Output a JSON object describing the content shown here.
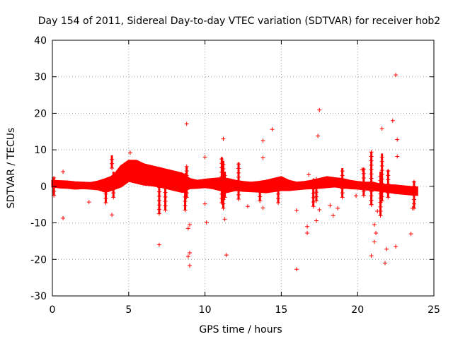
{
  "chart_data": {
    "type": "scatter",
    "title": "Day 154 of 2011, Sidereal Day-to-day VTEC variation (SDTVAR) for receiver hob2",
    "xlabel": "GPS time / hours",
    "ylabel": "SDTVAR / TECUs",
    "xlim": [
      0,
      25
    ],
    "ylim": [
      -30,
      40
    ],
    "xticks": [
      0,
      5,
      10,
      15,
      20,
      25
    ],
    "yticks": [
      -30,
      -20,
      -10,
      0,
      10,
      20,
      30,
      40
    ],
    "xtick_labels": [
      "0",
      "5",
      "10",
      "15",
      "20",
      "25"
    ],
    "ytick_labels": [
      "-30",
      "-20",
      "-10",
      "0",
      "10",
      "20",
      "30",
      "40"
    ],
    "grid": true,
    "marker": "+",
    "color": "#ff0000",
    "band": [
      [
        0.0,
        0.0,
        1.5
      ],
      [
        0.5,
        -0.3,
        1.4
      ],
      [
        1.0,
        -0.4,
        1.3
      ],
      [
        1.5,
        -0.6,
        1.1
      ],
      [
        2.0,
        -0.5,
        1.0
      ],
      [
        2.5,
        -0.6,
        0.9
      ],
      [
        3.0,
        -0.8,
        1.3
      ],
      [
        3.5,
        -1.5,
        2.0
      ],
      [
        4.0,
        -0.8,
        2.8
      ],
      [
        4.5,
        0.0,
        5.5
      ],
      [
        5.0,
        1.5,
        7.0
      ],
      [
        5.5,
        1.0,
        7.0
      ],
      [
        6.0,
        0.5,
        6.0
      ],
      [
        6.5,
        0.3,
        5.5
      ],
      [
        7.0,
        0.0,
        5.0
      ],
      [
        7.5,
        -0.5,
        4.5
      ],
      [
        8.0,
        -1.0,
        4.0
      ],
      [
        8.5,
        -1.5,
        3.5
      ],
      [
        9.0,
        -0.5,
        2.0
      ],
      [
        9.5,
        -0.4,
        1.5
      ],
      [
        10.0,
        -0.2,
        1.8
      ],
      [
        10.5,
        -0.5,
        2.0
      ],
      [
        11.0,
        -1.0,
        2.2
      ],
      [
        11.5,
        -1.5,
        2.0
      ],
      [
        12.0,
        -1.0,
        1.5
      ],
      [
        12.5,
        -1.2,
        1.2
      ],
      [
        13.0,
        -1.3,
        1.0
      ],
      [
        13.5,
        -1.4,
        1.2
      ],
      [
        14.0,
        -1.6,
        1.5
      ],
      [
        14.5,
        -1.3,
        2.0
      ],
      [
        15.0,
        -1.0,
        2.5
      ],
      [
        15.5,
        -1.0,
        1.5
      ],
      [
        16.0,
        -0.8,
        1.0
      ],
      [
        16.5,
        -0.6,
        1.2
      ],
      [
        17.0,
        -0.5,
        1.5
      ],
      [
        17.5,
        -0.4,
        2.0
      ],
      [
        18.0,
        -0.2,
        2.5
      ],
      [
        18.5,
        0.0,
        2.2
      ],
      [
        19.0,
        -0.3,
        2.0
      ],
      [
        19.5,
        -0.5,
        1.5
      ],
      [
        20.0,
        -0.6,
        1.2
      ],
      [
        20.5,
        -0.8,
        1.0
      ],
      [
        21.0,
        -1.0,
        1.0
      ],
      [
        21.5,
        -1.2,
        0.5
      ],
      [
        22.0,
        -1.5,
        0.3
      ],
      [
        22.5,
        -1.8,
        0.2
      ],
      [
        23.0,
        -2.0,
        0.0
      ],
      [
        23.5,
        -2.2,
        -0.2
      ],
      [
        23.9,
        -2.3,
        -0.3
      ]
    ],
    "spikes": [
      [
        0.1,
        -2.5,
        2.5
      ],
      [
        3.5,
        -4.5,
        2.0
      ],
      [
        3.9,
        5.0,
        8.5
      ],
      [
        4.0,
        -3.0,
        4.0
      ],
      [
        7.0,
        -7.5,
        4.5
      ],
      [
        7.4,
        -6.5,
        4.0
      ],
      [
        8.7,
        -6.5,
        3.5
      ],
      [
        8.8,
        -3.0,
        5.5
      ],
      [
        11.1,
        -4.5,
        8.0
      ],
      [
        11.2,
        -6.0,
        7.0
      ],
      [
        11.3,
        -3.0,
        4.0
      ],
      [
        12.2,
        -3.5,
        6.5
      ],
      [
        13.6,
        -4.0,
        1.5
      ],
      [
        14.8,
        -4.5,
        2.5
      ],
      [
        17.1,
        -5.5,
        2.0
      ],
      [
        17.3,
        -4.0,
        2.0
      ],
      [
        19.0,
        -3.0,
        5.0
      ],
      [
        20.4,
        -2.5,
        5.0
      ],
      [
        20.9,
        -5.0,
        9.5
      ],
      [
        21.5,
        -8.0,
        4.0
      ],
      [
        21.6,
        -4.0,
        9.0
      ],
      [
        22.0,
        -3.0,
        4.5
      ],
      [
        23.7,
        -6.0,
        1.5
      ]
    ],
    "outliers": [
      [
        0.7,
        4.0
      ],
      [
        0.7,
        -8.7
      ],
      [
        2.4,
        -4.3
      ],
      [
        3.9,
        -7.8
      ],
      [
        5.1,
        9.2
      ],
      [
        7.0,
        -16.0
      ],
      [
        8.8,
        17.1
      ],
      [
        8.9,
        -11.5
      ],
      [
        8.9,
        -19.2
      ],
      [
        9.0,
        -10.5
      ],
      [
        9.0,
        -18.2
      ],
      [
        9.0,
        -21.7
      ],
      [
        10.0,
        8.0
      ],
      [
        10.0,
        -4.8
      ],
      [
        10.1,
        -9.9
      ],
      [
        11.2,
        13.0
      ],
      [
        11.3,
        -9.0
      ],
      [
        11.4,
        -18.8
      ],
      [
        12.8,
        -5.5
      ],
      [
        13.8,
        12.5
      ],
      [
        13.8,
        7.8
      ],
      [
        13.8,
        -5.9
      ],
      [
        14.4,
        15.6
      ],
      [
        16.0,
        -6.6
      ],
      [
        16.0,
        -22.7
      ],
      [
        16.7,
        -11.0
      ],
      [
        16.7,
        -12.8
      ],
      [
        16.8,
        3.2
      ],
      [
        17.3,
        -9.4
      ],
      [
        17.4,
        13.8
      ],
      [
        17.5,
        20.9
      ],
      [
        17.5,
        -6.4
      ],
      [
        18.2,
        -5.2
      ],
      [
        18.4,
        -8.0
      ],
      [
        18.7,
        -6.0
      ],
      [
        19.9,
        -2.6
      ],
      [
        20.3,
        4.6
      ],
      [
        20.9,
        -5.0
      ],
      [
        20.9,
        -19.0
      ],
      [
        21.1,
        -10.5
      ],
      [
        21.1,
        -15.2
      ],
      [
        21.2,
        -12.8
      ],
      [
        21.3,
        -6.8
      ],
      [
        21.6,
        15.8
      ],
      [
        21.8,
        -21.0
      ],
      [
        21.9,
        -17.2
      ],
      [
        22.3,
        18.0
      ],
      [
        22.5,
        30.5
      ],
      [
        22.5,
        -16.5
      ],
      [
        22.6,
        12.8
      ],
      [
        22.6,
        8.2
      ],
      [
        23.5,
        -13.0
      ],
      [
        23.6,
        -6.0
      ]
    ]
  }
}
